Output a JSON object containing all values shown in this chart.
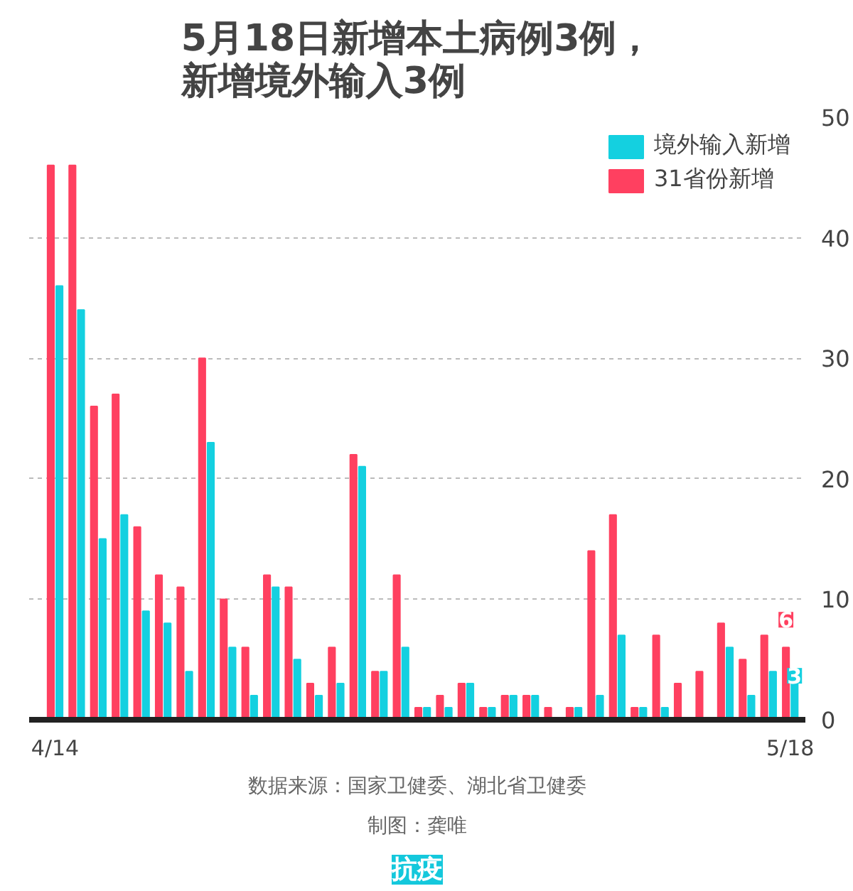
{
  "chart_data": {
    "type": "bar",
    "title": "5月18日新增本土病例3例，新增境外输入3例",
    "categories": [
      "4/14",
      null,
      null,
      null,
      null,
      null,
      null,
      null,
      null,
      null,
      null,
      null,
      null,
      null,
      null,
      null,
      null,
      null,
      null,
      null,
      null,
      null,
      null,
      null,
      null,
      null,
      null,
      null,
      null,
      null,
      null,
      null,
      null,
      null,
      "5/18"
    ],
    "series": [
      {
        "name": "31省份新增",
        "color": "#ff4060",
        "values": [
          46,
          46,
          26,
          27,
          16,
          12,
          11,
          30,
          10,
          6,
          12,
          11,
          3,
          6,
          22,
          4,
          12,
          1,
          2,
          3,
          1,
          2,
          2,
          1,
          1,
          14,
          17,
          1,
          7,
          3,
          4,
          8,
          5,
          7,
          6
        ],
        "value_labels": [
          null,
          null,
          null,
          null,
          null,
          null,
          null,
          null,
          null,
          null,
          null,
          null,
          null,
          null,
          null,
          null,
          null,
          null,
          null,
          null,
          null,
          null,
          null,
          null,
          null,
          null,
          null,
          null,
          null,
          null,
          null,
          null,
          null,
          null,
          "6"
        ]
      },
      {
        "name": "境外输入新增",
        "color": "#14d0e0",
        "values": [
          36,
          34,
          15,
          17,
          9,
          8,
          4,
          23,
          6,
          2,
          11,
          5,
          2,
          3,
          21,
          4,
          6,
          1,
          1,
          3,
          1,
          2,
          2,
          0,
          1,
          2,
          7,
          1,
          1,
          0,
          0,
          6,
          2,
          4,
          3
        ],
        "value_labels": [
          null,
          null,
          null,
          null,
          null,
          null,
          null,
          null,
          null,
          null,
          null,
          null,
          null,
          null,
          null,
          null,
          null,
          null,
          null,
          null,
          null,
          null,
          null,
          null,
          null,
          null,
          null,
          null,
          null,
          null,
          null,
          null,
          null,
          null,
          "3"
        ]
      }
    ],
    "ylim": [
      0,
      50
    ],
    "yticks": [
      0,
      10,
      20,
      30,
      40,
      50
    ],
    "grid": "y",
    "legend": "top right",
    "annotations": [
      "数据来源：国家卫健委、湖北省卫健委",
      "制图：龚唯",
      "抗疫"
    ]
  }
}
